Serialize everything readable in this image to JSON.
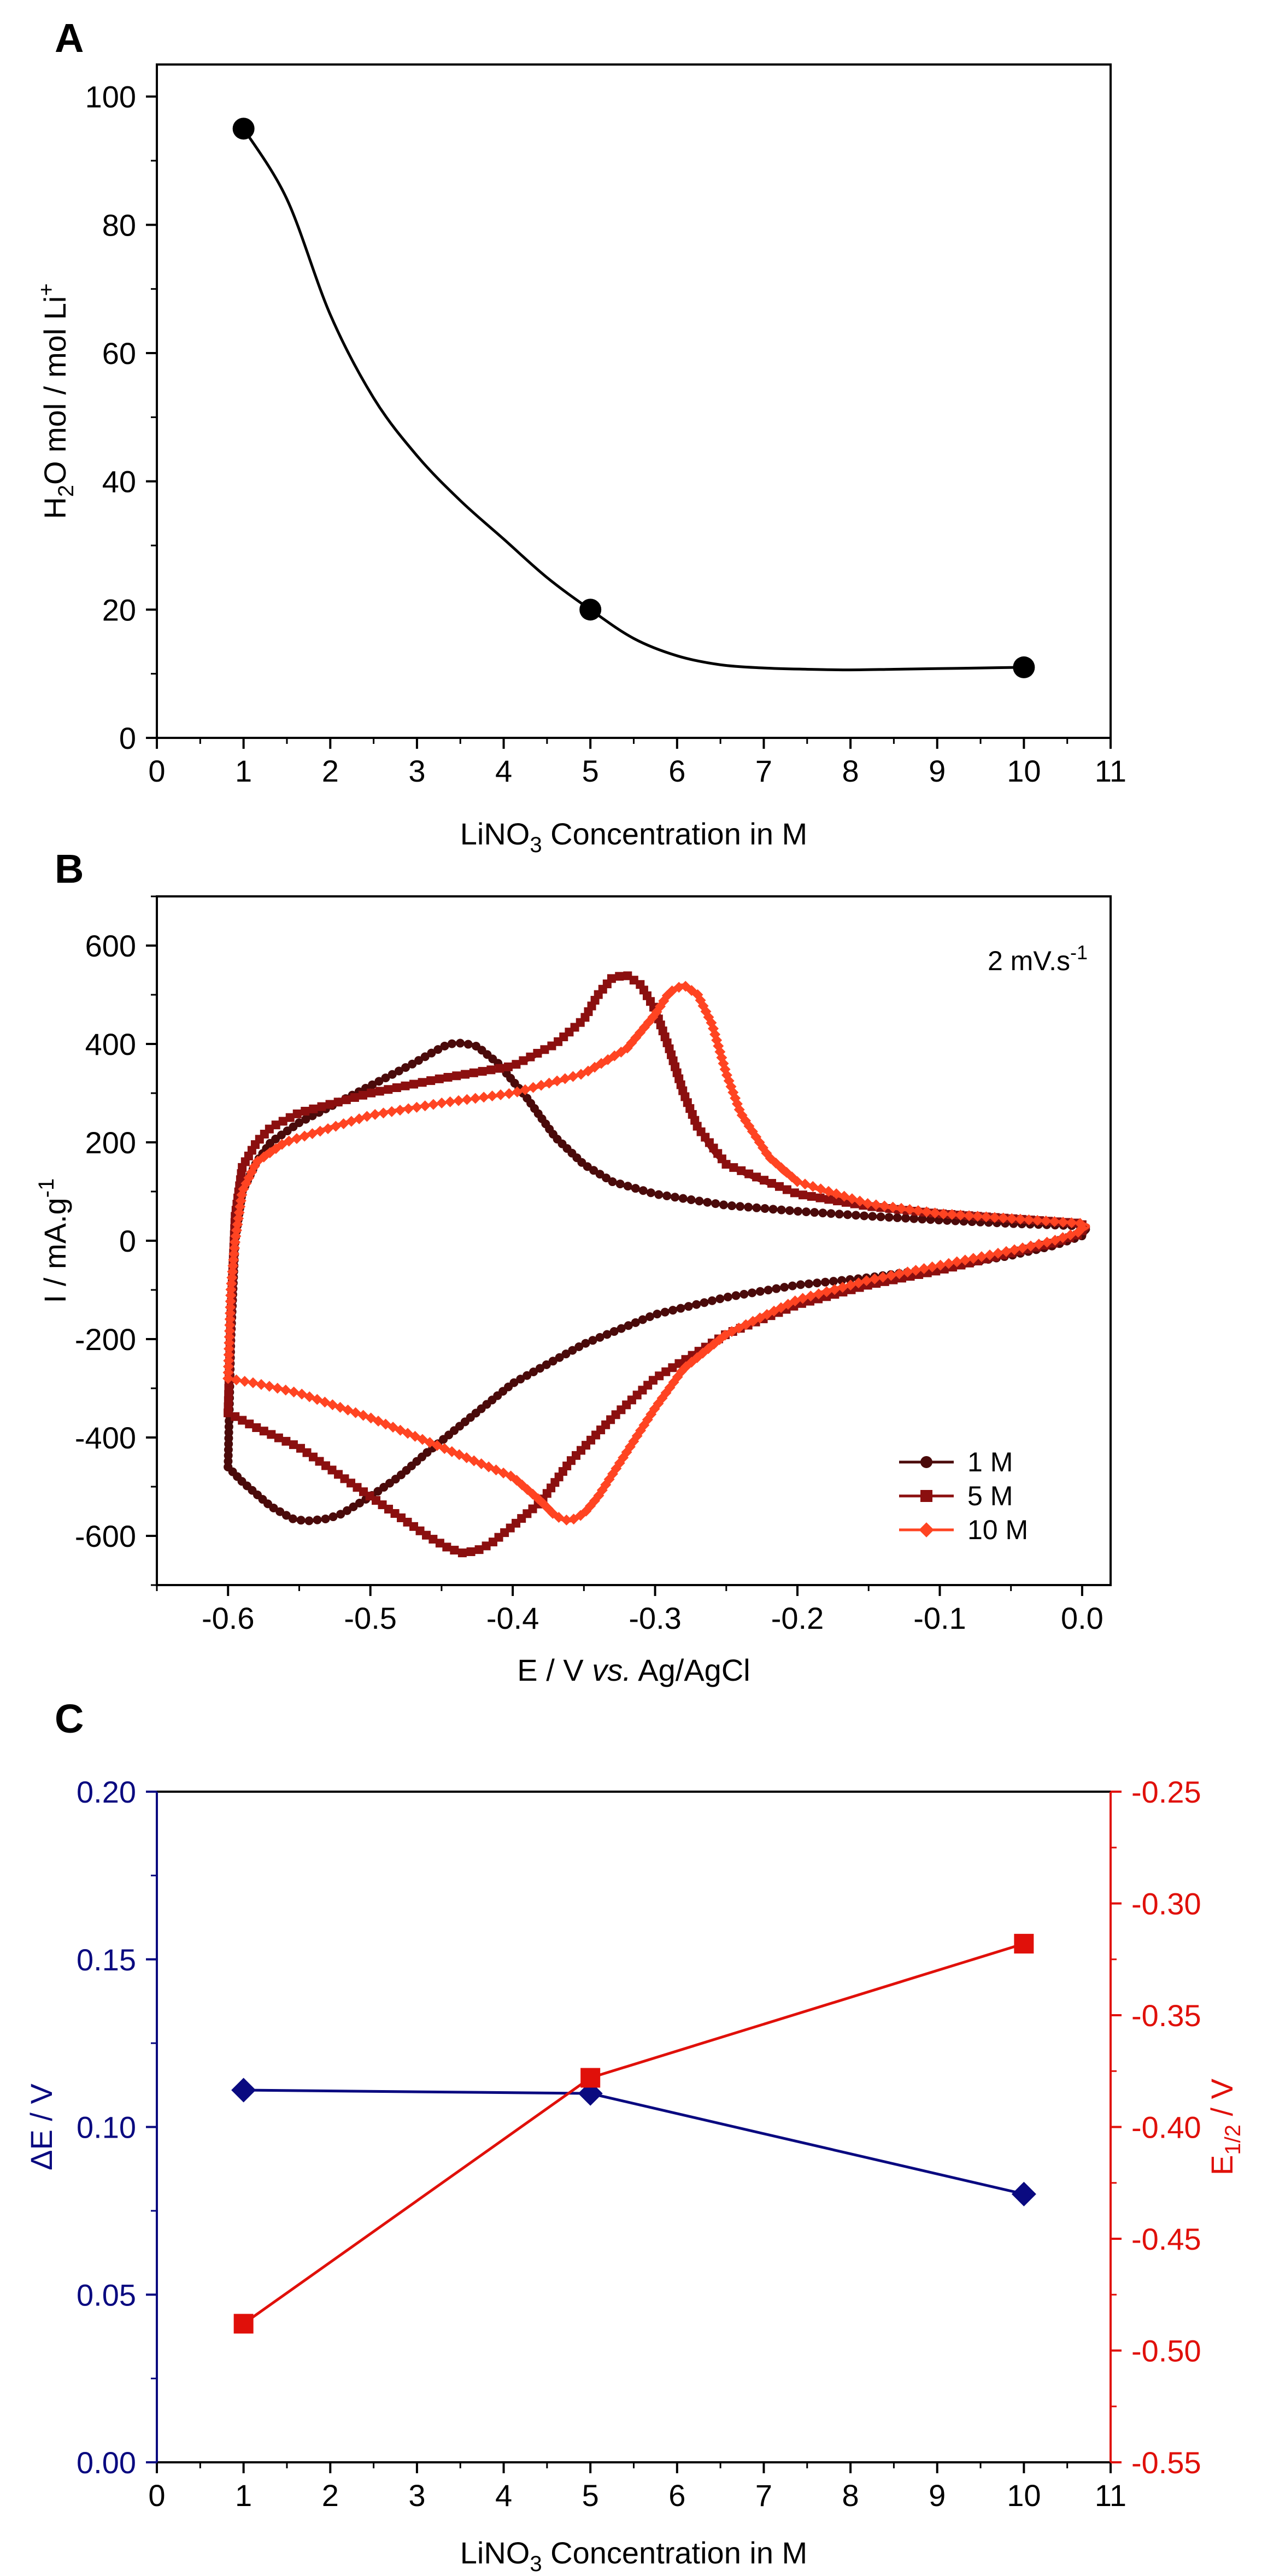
{
  "chart_data": [
    {
      "panel_label": "A",
      "type": "line",
      "title": "",
      "xlabel": {
        "main": "LiNO",
        "sub": "3",
        "rest": " Concentration in M"
      },
      "ylabel": {
        "pre": "H",
        "sub": "2",
        "mid": "O mol / mol Li",
        "sup": "+"
      },
      "xlim": [
        0,
        11
      ],
      "ylim": [
        0,
        105
      ],
      "xticks": [
        0,
        1,
        2,
        3,
        4,
        5,
        6,
        7,
        8,
        9,
        10,
        11
      ],
      "xtick_labels": [
        "0",
        "1",
        "2",
        "3",
        "4",
        "5",
        "6",
        "7",
        "8",
        "9",
        "10",
        "11"
      ],
      "yticks": [
        0,
        20,
        40,
        60,
        80,
        100
      ],
      "ytick_labels": [
        "0",
        "20",
        "40",
        "60",
        "80",
        "100"
      ],
      "grid": false,
      "series": [
        {
          "name": "H2O per Li+",
          "x": [
            1,
            5,
            10
          ],
          "y": [
            95,
            20,
            11
          ],
          "color": "#000000",
          "marker": "circle",
          "smooth": true,
          "curve": {
            "x": [
              1,
              1.5,
              2,
              2.5,
              3,
              3.5,
              4,
              4.5,
              5,
              5.5,
              6,
              6.5,
              7,
              7.5,
              8,
              8.5,
              9,
              9.5,
              10
            ],
            "y": [
              95,
              84,
              66,
              53,
              44,
              37,
              31,
              25,
              20,
              15.5,
              12.8,
              11.4,
              10.9,
              10.7,
              10.6,
              10.7,
              10.8,
              10.9,
              11
            ]
          }
        }
      ]
    },
    {
      "panel_label": "B",
      "type": "line",
      "title": "",
      "xlabel": {
        "pre": "E / V ",
        "italic": "vs.",
        "post": " Ag/AgCl"
      },
      "ylabel": {
        "main": "I / mA.g",
        "sup": "-1"
      },
      "annotation": {
        "main": "2 mV.s",
        "sup": "-1"
      },
      "xlim": [
        -0.65,
        0.02
      ],
      "ylim": [
        -700,
        700
      ],
      "xticks": [
        -0.6,
        -0.5,
        -0.4,
        -0.3,
        -0.2,
        -0.1,
        0.0
      ],
      "xtick_labels": [
        "-0.6",
        "-0.5",
        "-0.4",
        "-0.3",
        "-0.2",
        "-0.1",
        "0.0"
      ],
      "yticks": [
        -600,
        -400,
        -200,
        0,
        200,
        400,
        600
      ],
      "ytick_labels": [
        "-600",
        "-400",
        "-200",
        "0",
        "200",
        "400",
        "600"
      ],
      "grid": false,
      "legend": "bottom-right",
      "series": [
        {
          "name": "1 M",
          "color": "#4a0a0a",
          "marker": "circle",
          "x": [
            -0.6,
            -0.598,
            -0.595,
            -0.59,
            -0.58,
            -0.57,
            -0.55,
            -0.53,
            -0.51,
            -0.49,
            -0.47,
            -0.455,
            -0.445,
            -0.435,
            -0.425,
            -0.41,
            -0.39,
            -0.37,
            -0.35,
            -0.33,
            -0.3,
            -0.25,
            -0.2,
            -0.15,
            -0.1,
            -0.05,
            0.0,
            0.0,
            -0.02,
            -0.05,
            -0.1,
            -0.15,
            -0.2,
            -0.25,
            -0.3,
            -0.35,
            -0.4,
            -0.43,
            -0.46,
            -0.48,
            -0.5,
            -0.52,
            -0.53,
            -0.545,
            -0.555,
            -0.57,
            -0.58,
            -0.59,
            -0.6
          ],
          "y": [
            -460,
            -200,
            0,
            100,
            160,
            200,
            240,
            270,
            300,
            330,
            360,
            385,
            400,
            402,
            395,
            360,
            290,
            210,
            155,
            120,
            95,
            72,
            60,
            50,
            42,
            35,
            30,
            10,
            -10,
            -30,
            -55,
            -75,
            -90,
            -115,
            -150,
            -210,
            -290,
            -360,
            -430,
            -480,
            -520,
            -555,
            -565,
            -570,
            -565,
            -540,
            -515,
            -490,
            -460
          ]
        },
        {
          "name": "5 M",
          "color": "#8b0f0f",
          "marker": "square",
          "x": [
            -0.6,
            -0.598,
            -0.595,
            -0.59,
            -0.58,
            -0.57,
            -0.55,
            -0.5,
            -0.45,
            -0.4,
            -0.37,
            -0.35,
            -0.34,
            -0.33,
            -0.32,
            -0.31,
            -0.3,
            -0.29,
            -0.28,
            -0.27,
            -0.25,
            -0.2,
            -0.15,
            -0.1,
            -0.05,
            0.0,
            0.0,
            -0.02,
            -0.05,
            -0.1,
            -0.15,
            -0.2,
            -0.25,
            -0.3,
            -0.33,
            -0.36,
            -0.38,
            -0.4,
            -0.415,
            -0.425,
            -0.435,
            -0.445,
            -0.46,
            -0.5,
            -0.55,
            -0.58,
            -0.6
          ],
          "y": [
            -350,
            -150,
            50,
            150,
            200,
            230,
            260,
            300,
            330,
            355,
            400,
            450,
            500,
            535,
            540,
            520,
            470,
            390,
            300,
            230,
            155,
            95,
            70,
            55,
            45,
            35,
            15,
            -5,
            -25,
            -60,
            -90,
            -130,
            -190,
            -280,
            -360,
            -450,
            -530,
            -580,
            -615,
            -630,
            -635,
            -625,
            -600,
            -520,
            -420,
            -380,
            -350
          ]
        },
        {
          "name": "10 M",
          "color": "#ff4422",
          "marker": "diamond",
          "x": [
            -0.6,
            -0.598,
            -0.595,
            -0.59,
            -0.58,
            -0.56,
            -0.5,
            -0.45,
            -0.4,
            -0.35,
            -0.32,
            -0.3,
            -0.29,
            -0.28,
            -0.27,
            -0.26,
            -0.25,
            -0.24,
            -0.22,
            -0.2,
            -0.15,
            -0.1,
            -0.05,
            0.0,
            0.0,
            -0.02,
            -0.05,
            -0.1,
            -0.15,
            -0.2,
            -0.25,
            -0.28,
            -0.3,
            -0.32,
            -0.34,
            -0.35,
            -0.36,
            -0.37,
            -0.38,
            -0.4,
            -0.45,
            -0.5,
            -0.55,
            -0.58,
            -0.6
          ],
          "y": [
            -280,
            -100,
            0,
            100,
            160,
            200,
            255,
            280,
            300,
            340,
            390,
            460,
            505,
            520,
            500,
            440,
            340,
            260,
            170,
            120,
            75,
            55,
            45,
            35,
            20,
            0,
            -20,
            -50,
            -80,
            -120,
            -190,
            -260,
            -340,
            -430,
            -520,
            -555,
            -570,
            -560,
            -530,
            -480,
            -420,
            -360,
            -310,
            -290,
            -280
          ]
        }
      ]
    },
    {
      "panel_label": "C",
      "type": "line",
      "title": "",
      "xlabel": {
        "main": "LiNO",
        "sub": "3",
        "rest": " Concentration in M"
      },
      "ylabel": "ΔE / V",
      "ylabel_right": {
        "main": "E",
        "sub": "1/2",
        "rest": " / V"
      },
      "xlim": [
        0,
        11
      ],
      "ylim": [
        0,
        0.2
      ],
      "ylim_right": [
        -0.55,
        -0.25
      ],
      "xticks": [
        0,
        1,
        2,
        3,
        4,
        5,
        6,
        7,
        8,
        9,
        10,
        11
      ],
      "xtick_labels": [
        "0",
        "1",
        "2",
        "3",
        "4",
        "5",
        "6",
        "7",
        "8",
        "9",
        "10",
        "11"
      ],
      "yticks": [
        0.0,
        0.05,
        0.1,
        0.15,
        0.2
      ],
      "ytick_labels": [
        "0.00",
        "0.05",
        "0.10",
        "0.15",
        "0.20"
      ],
      "yticks_right": [
        -0.55,
        -0.5,
        -0.45,
        -0.4,
        -0.35,
        -0.3,
        -0.25
      ],
      "ytick_labels_right": [
        "-0.55",
        "-0.50",
        "-0.45",
        "-0.40",
        "-0.35",
        "-0.30",
        "-0.25"
      ],
      "grid": false,
      "left_color": "#0a0a80",
      "right_color": "#e0100a",
      "series": [
        {
          "name": "ΔE",
          "axis": "left",
          "x": [
            1,
            5,
            10
          ],
          "y": [
            0.111,
            0.11,
            0.08
          ],
          "color": "#0a0a80",
          "marker": "diamond"
        },
        {
          "name": "E1/2",
          "axis": "right",
          "x": [
            1,
            5,
            10
          ],
          "y": [
            -0.488,
            -0.378,
            -0.318
          ],
          "color": "#e0100a",
          "marker": "square"
        }
      ]
    }
  ]
}
